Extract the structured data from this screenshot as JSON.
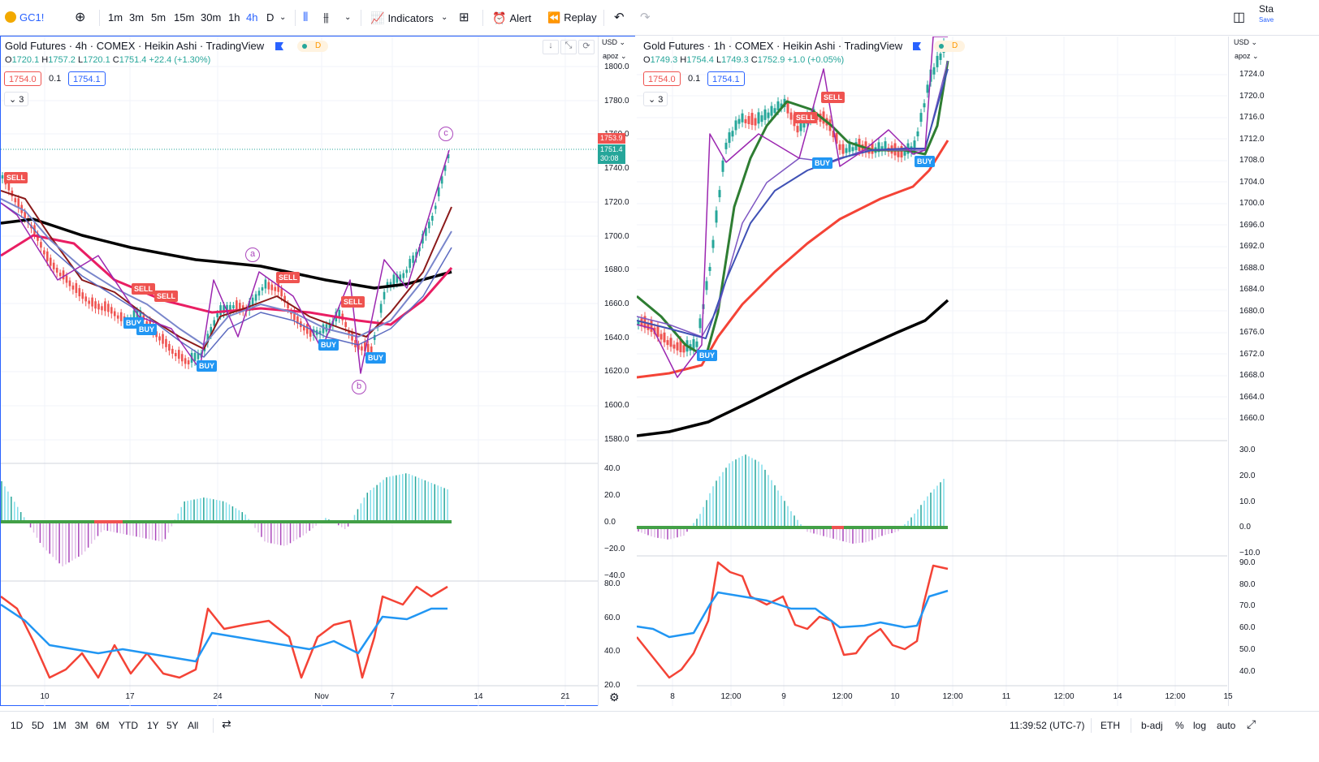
{
  "toolbar": {
    "symbol": "GC1!",
    "intervals": [
      "1m",
      "3m",
      "5m",
      "15m",
      "30m",
      "1h",
      "4h",
      "D"
    ],
    "active_interval": "4h",
    "indicators_label": "Indicators",
    "alert_label": "Alert",
    "replay_label": "Replay",
    "right_partial": "Sta",
    "right_partial_sub": "Save"
  },
  "left_chart": {
    "title": "Gold Futures · 4h · COMEX · Heikin Ashi · TradingView",
    "ohlc": {
      "o": "1720.1",
      "h": "1757.2",
      "l": "1720.1",
      "c": "1751.4",
      "chg": "+22.4 (+1.30%)"
    },
    "bid": "1754.0",
    "spread": "0.1",
    "ask": "1754.1",
    "collapsed_count": "3",
    "currency": "USD",
    "scale_mode": "apoz",
    "price_labels": [
      "1800.0",
      "1780.0",
      "1760.0",
      "1740.0",
      "1720.0",
      "1700.0",
      "1680.0",
      "1660.0",
      "1640.0",
      "1620.0",
      "1600.0",
      "1580.0"
    ],
    "last_price_red": "1753.9",
    "last_price_green": "1751.4",
    "countdown": "30:08",
    "osc_labels": [
      "40.0",
      "20.0",
      "0.0",
      "−20.0",
      "−40.0"
    ],
    "rsi_labels": [
      "80.0",
      "60.0",
      "40.0",
      "20.0"
    ],
    "x_labels": [
      "10",
      "17",
      "24",
      "Nov",
      "7",
      "14",
      "21"
    ],
    "signals": [
      {
        "text": "SELL",
        "type": "sell"
      },
      {
        "text": "SELL",
        "type": "sell"
      },
      {
        "text": "SELL",
        "type": "sell"
      },
      {
        "text": "SELL",
        "type": "sell"
      },
      {
        "text": "SELL",
        "type": "sell"
      },
      {
        "text": "BUY",
        "type": "buy"
      },
      {
        "text": "BUY",
        "type": "buy"
      },
      {
        "text": "BUY",
        "type": "buy"
      },
      {
        "text": "BUY",
        "type": "buy"
      },
      {
        "text": "BUY",
        "type": "buy"
      }
    ],
    "waves": [
      "a",
      "b",
      "c"
    ]
  },
  "right_chart": {
    "title": "Gold Futures · 1h · COMEX · Heikin Ashi · TradingView",
    "ohlc": {
      "o": "1749.3",
      "h": "1754.4",
      "l": "1749.3",
      "c": "1752.9",
      "chg": "+1.0 (+0.05%)"
    },
    "bid": "1754.0",
    "spread": "0.1",
    "ask": "1754.1",
    "collapsed_count": "3",
    "currency": "USD",
    "scale_mode": "apoz",
    "price_labels": [
      "1724.0",
      "1720.0",
      "1716.0",
      "1712.0",
      "1708.0",
      "1704.0",
      "1700.0",
      "1696.0",
      "1692.0",
      "1688.0",
      "1684.0",
      "1680.0",
      "1676.0",
      "1672.0",
      "1668.0",
      "1664.0",
      "1660.0"
    ],
    "osc_labels": [
      "30.0",
      "20.0",
      "10.0",
      "0.0",
      "−10.0"
    ],
    "rsi_labels": [
      "90.0",
      "80.0",
      "70.0",
      "60.0",
      "50.0",
      "40.0"
    ],
    "x_labels": [
      "8",
      "12:00",
      "9",
      "12:00",
      "10",
      "12:00",
      "11",
      "12:00",
      "14",
      "12:00",
      "15"
    ],
    "signals": [
      {
        "text": "SELL",
        "type": "sell"
      },
      {
        "text": "SELL",
        "type": "sell"
      },
      {
        "text": "BUY",
        "type": "buy"
      },
      {
        "text": "BUY",
        "type": "buy"
      },
      {
        "text": "BUY",
        "type": "buy"
      }
    ]
  },
  "bottombar": {
    "ranges": [
      "1D",
      "5D",
      "1M",
      "3M",
      "6M",
      "YTD",
      "1Y",
      "5Y",
      "All"
    ],
    "time": "11:39:52 (UTC-7)",
    "session": "ETH",
    "adj": "b-adj",
    "pct": "%",
    "log": "log",
    "auto": "auto"
  },
  "colors": {
    "accent": "#2962ff",
    "bull": "#26a69a",
    "bear": "#ef5350",
    "sell": "#ef5350",
    "buy": "#2196f3"
  }
}
